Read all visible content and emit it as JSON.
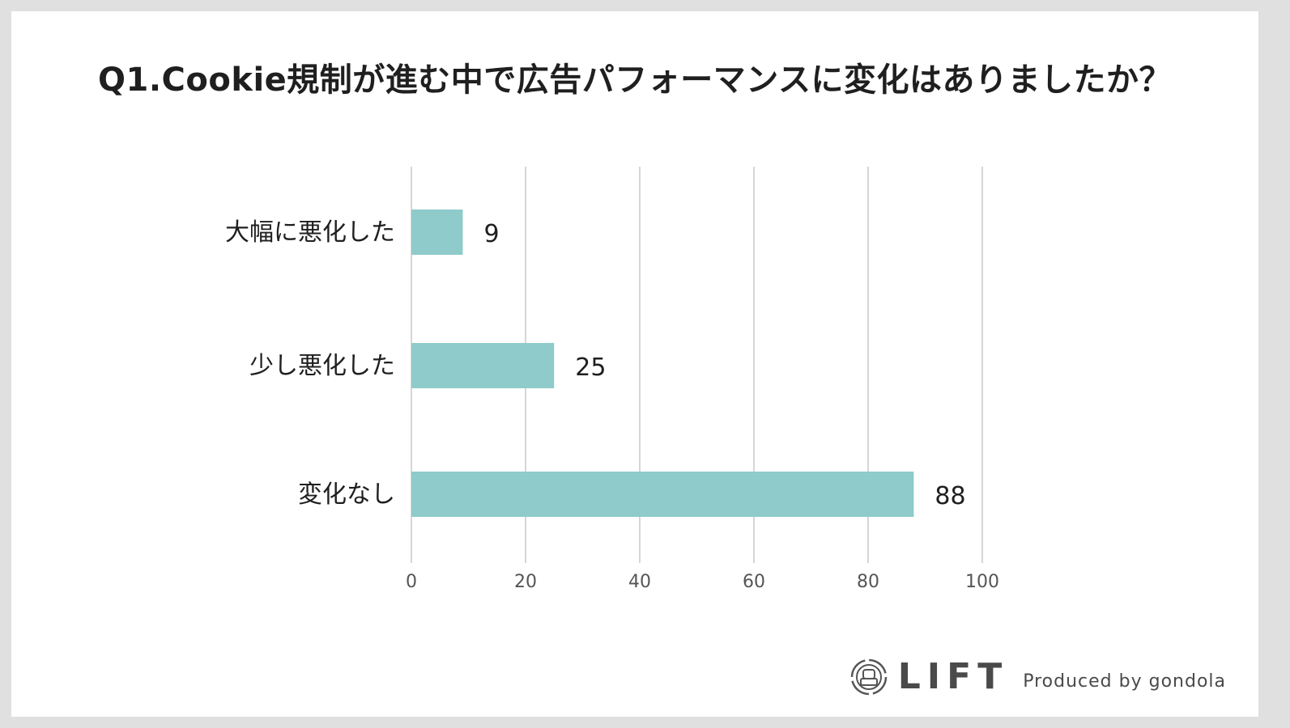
{
  "title": "Q1.Cookie規制が進む中で広告パフォーマンスに変化はありましたか？",
  "colors": {
    "bar": "#8ecbca",
    "grid": "#d6d6d6",
    "text": "#1f1f1f",
    "tick": "#555555"
  },
  "chart_data": {
    "type": "bar",
    "orientation": "horizontal",
    "categories": [
      "大幅に悪化した",
      "少し悪化した",
      "変化なし"
    ],
    "values": [
      9,
      25,
      88
    ],
    "data_labels": [
      "9",
      "25",
      "88"
    ],
    "xlim": [
      0,
      100
    ],
    "xticks": [
      "0",
      "20",
      "40",
      "60",
      "80",
      "100"
    ],
    "grid": "vertical",
    "legend": "none"
  },
  "footer": {
    "logo_icon": "lift-logo-icon",
    "logo_text": "LIFT",
    "produced_by": "Produced by gondola"
  }
}
